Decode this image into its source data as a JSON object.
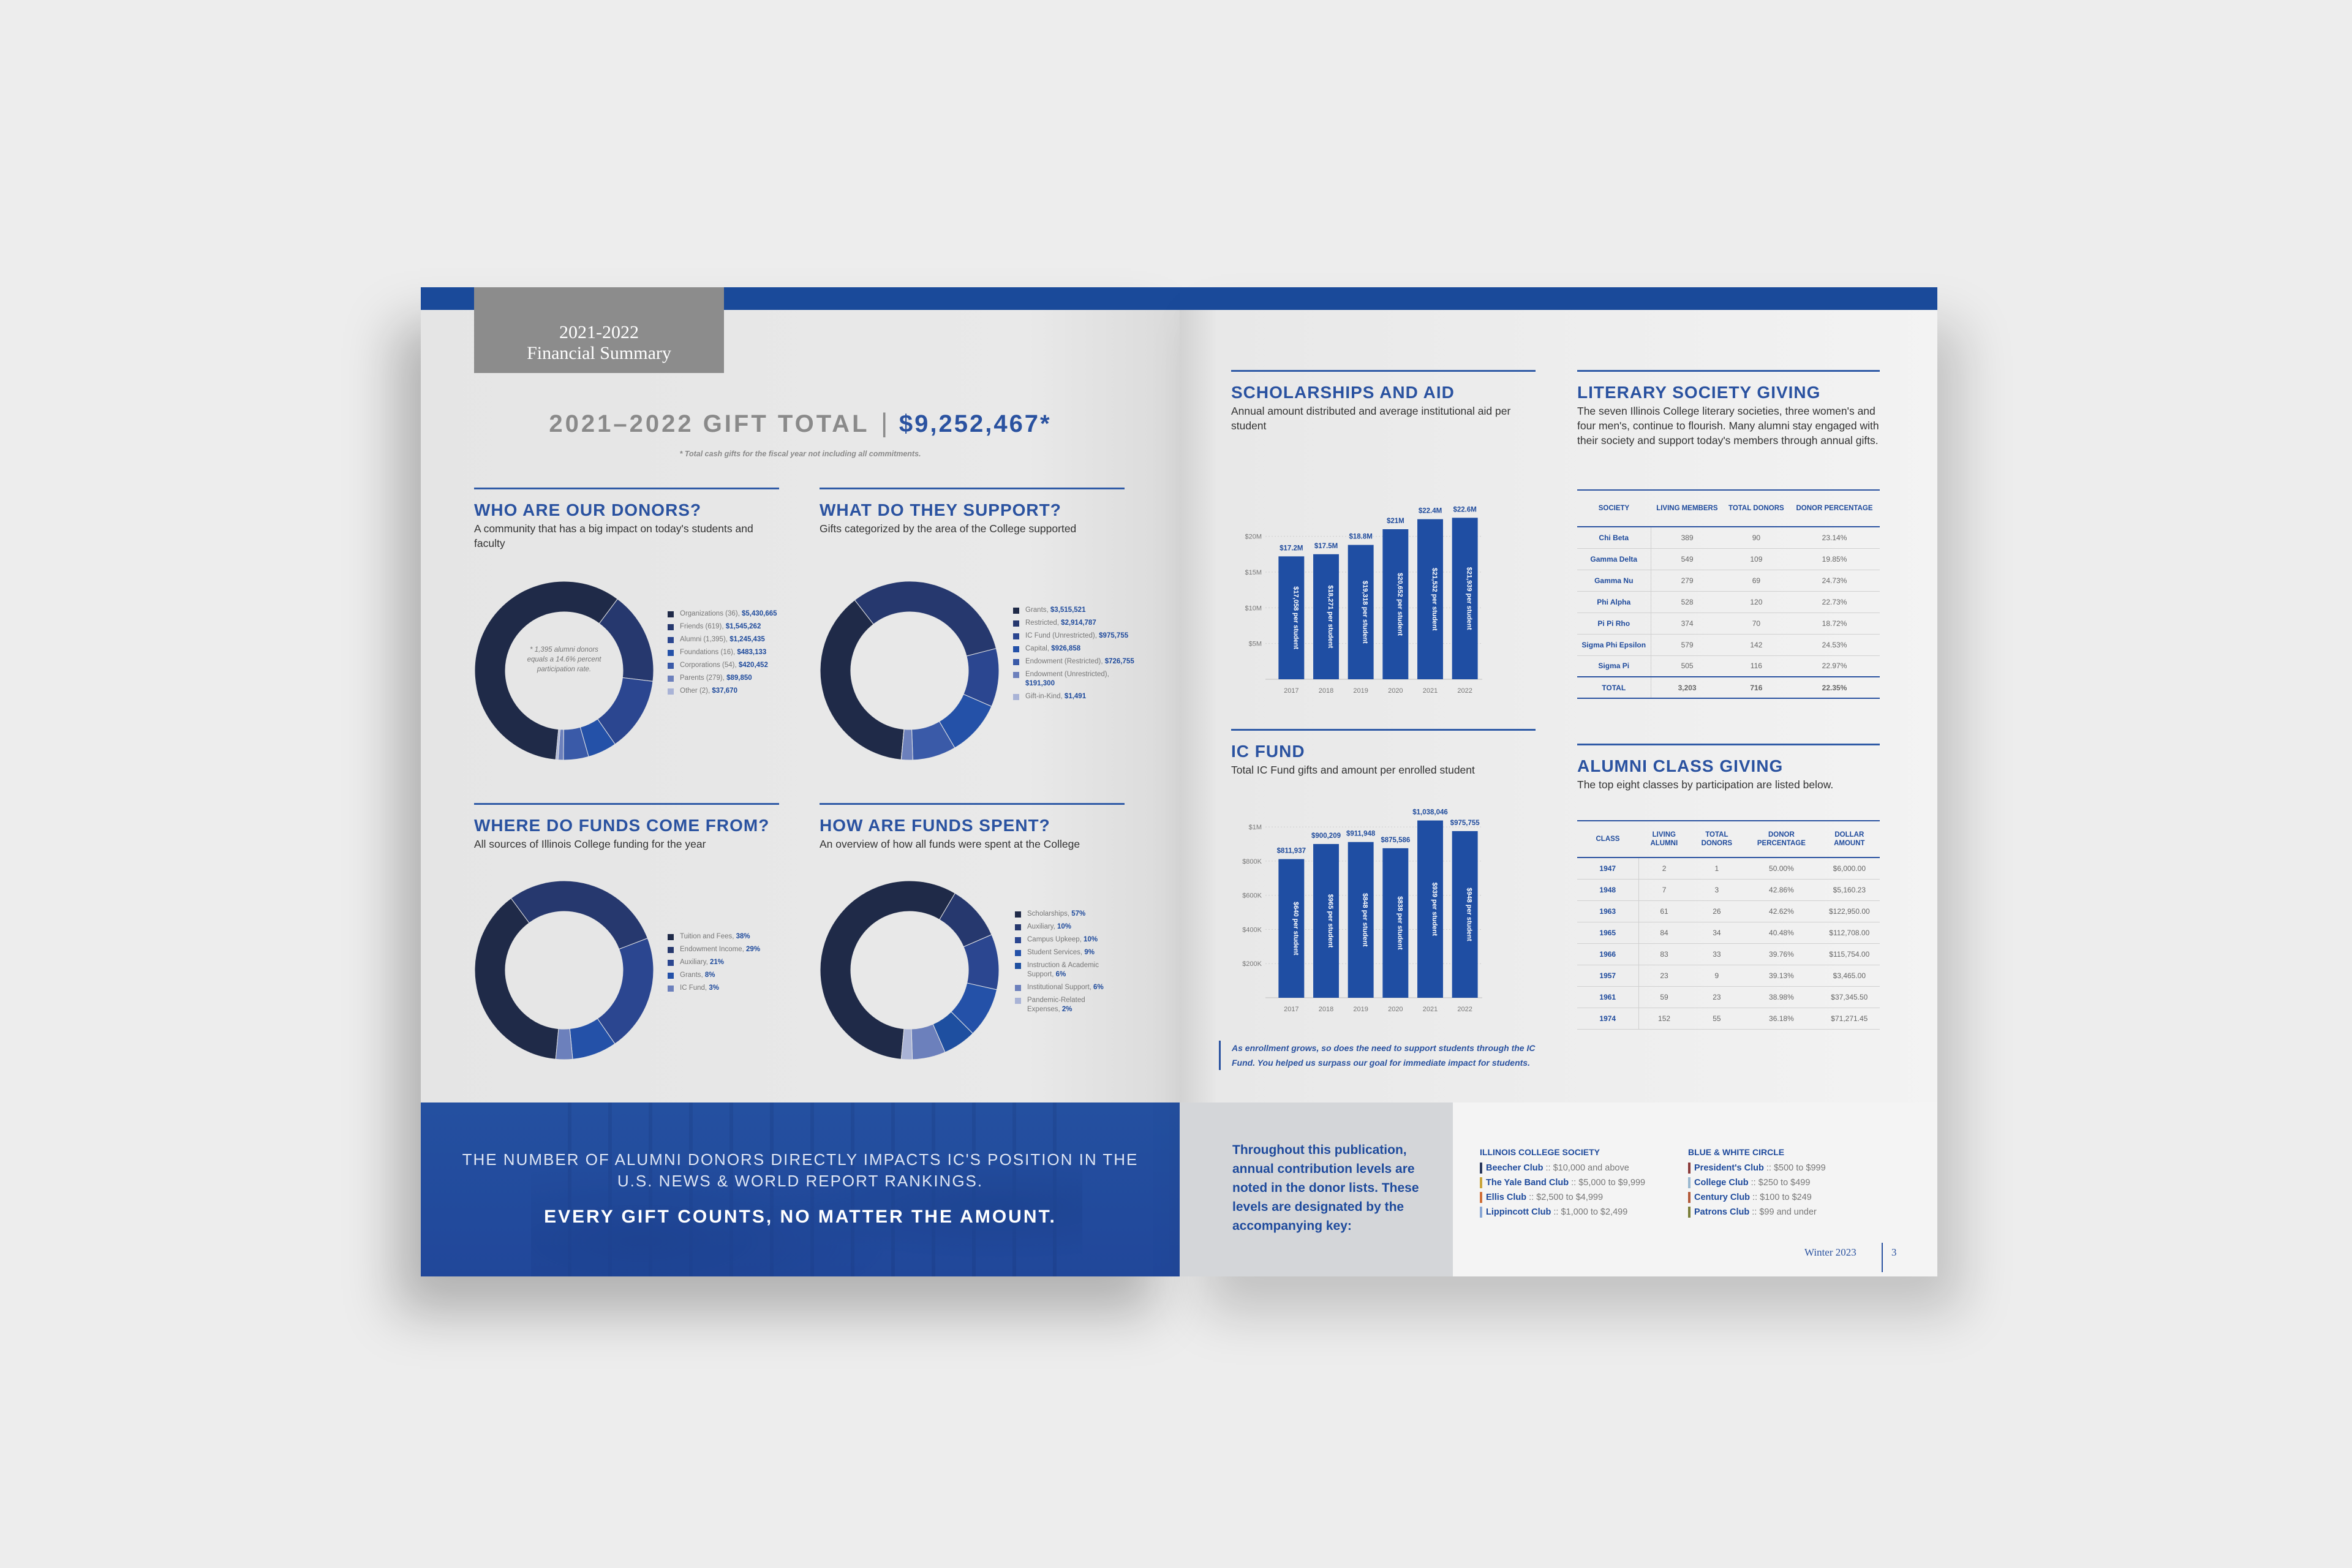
{
  "left_page": {
    "header_badge": {
      "line1": "2021-2022",
      "line2": "Financial Summary"
    },
    "gift_total": {
      "label": "2021–2022 GIFT TOTAL",
      "separator": "|",
      "amount": "$9,252,467*",
      "footnote": "* Total cash gifts for the fiscal year not including all commitments."
    },
    "donors": {
      "title": "WHO ARE OUR DONORS?",
      "subtitle": "A community that has a big impact on today's students and faculty",
      "center_note": "* 1,395 alumni donors equals a 14.6% percent participation rate.",
      "legend": [
        {
          "label": "Organizations (36),",
          "value": "$5,430,665"
        },
        {
          "label": "Friends (619),",
          "value": "$1,545,262"
        },
        {
          "label": "Alumni (1,395),",
          "value": "$1,245,435"
        },
        {
          "label": "Foundations (16),",
          "value": "$483,133"
        },
        {
          "label": "Corporations (54),",
          "value": "$420,452"
        },
        {
          "label": "Parents (279),",
          "value": "$89,850"
        },
        {
          "label": "Other (2),",
          "value": "$37,670"
        }
      ]
    },
    "support": {
      "title": "WHAT DO THEY SUPPORT?",
      "subtitle": "Gifts categorized by the area of the College supported",
      "legend": [
        {
          "label": "Grants,",
          "value": "$3,515,521"
        },
        {
          "label": "Restricted,",
          "value": "$2,914,787"
        },
        {
          "label": "IC Fund (Unrestricted),",
          "value": "$975,755"
        },
        {
          "label": "Capital,",
          "value": "$926,858"
        },
        {
          "label": "Endowment (Restricted),",
          "value": "$726,755"
        },
        {
          "label": "Endowment (Unrestricted),",
          "value": "$191,300"
        },
        {
          "label": "Gift-in-Kind,",
          "value": "$1,491"
        }
      ]
    },
    "sources": {
      "title": "WHERE DO FUNDS COME FROM?",
      "subtitle": "All sources of Illinois College funding for the year",
      "legend": [
        {
          "label": "Tuition and Fees,",
          "value": "38%"
        },
        {
          "label": "Endowment Income,",
          "value": "29%"
        },
        {
          "label": "Auxiliary,",
          "value": "21%"
        },
        {
          "label": "Grants,",
          "value": "8%"
        },
        {
          "label": "IC Fund,",
          "value": "3%"
        }
      ]
    },
    "spent": {
      "title": "HOW ARE FUNDS SPENT?",
      "subtitle": "An overview of how all funds were spent at the College",
      "legend": [
        {
          "label": "Scholarships,",
          "value": "57%"
        },
        {
          "label": "Auxiliary,",
          "value": "10%"
        },
        {
          "label": "Campus Upkeep,",
          "value": "10%"
        },
        {
          "label": "Student Services,",
          "value": "9%"
        },
        {
          "label": "Instruction & Academic Support,",
          "value": "6%"
        },
        {
          "label": "Institutional Support,",
          "value": "6%"
        },
        {
          "label": "Pandemic-Related Expenses,",
          "value": "2%"
        }
      ]
    },
    "banner": {
      "line1": "THE NUMBER OF ALUMNI DONORS DIRECTLY IMPACTS IC'S POSITION IN THE",
      "line2": "U.S. NEWS & WORLD REPORT RANKINGS.",
      "line3": "EVERY GIFT COUNTS, NO MATTER THE AMOUNT."
    }
  },
  "right_page": {
    "scholarships": {
      "title": "SCHOLARSHIPS AND AID",
      "subtitle": "Annual amount distributed and average institutional aid per student"
    },
    "icfund": {
      "title": "IC FUND",
      "subtitle": "Total IC Fund gifts and amount per enrolled student",
      "note": "As enrollment grows, so does the need to support students through the IC Fund. You helped us surpass our goal for immediate impact for students."
    },
    "literary": {
      "title": "LITERARY SOCIETY GIVING",
      "subtitle": "The seven Illinois College literary societies, three women's and four men's, continue to flourish. Many alumni stay engaged with their society and support today's members through annual gifts.",
      "headers": [
        "SOCIETY",
        "LIVING MEMBERS",
        "TOTAL DONORS",
        "DONOR PERCENTAGE"
      ],
      "rows": [
        [
          "Chi Beta",
          "389",
          "90",
          "23.14%"
        ],
        [
          "Gamma Delta",
          "549",
          "109",
          "19.85%"
        ],
        [
          "Gamma Nu",
          "279",
          "69",
          "24.73%"
        ],
        [
          "Phi Alpha",
          "528",
          "120",
          "22.73%"
        ],
        [
          "Pi Pi Rho",
          "374",
          "70",
          "18.72%"
        ],
        [
          "Sigma Phi Epsilon",
          "579",
          "142",
          "24.53%"
        ],
        [
          "Sigma Pi",
          "505",
          "116",
          "22.97%"
        ]
      ],
      "total": [
        "TOTAL",
        "3,203",
        "716",
        "22.35%"
      ]
    },
    "alumni": {
      "title": "ALUMNI CLASS GIVING",
      "subtitle": "The top eight classes by participation are listed below.",
      "headers": [
        "CLASS",
        "LIVING ALUMNI",
        "TOTAL DONORS",
        "DONOR PERCENTAGE",
        "DOLLAR AMOUNT"
      ],
      "rows": [
        [
          "1947",
          "2",
          "1",
          "50.00%",
          "$6,000.00"
        ],
        [
          "1948",
          "7",
          "3",
          "42.86%",
          "$5,160.23"
        ],
        [
          "1963",
          "61",
          "26",
          "42.62%",
          "$122,950.00"
        ],
        [
          "1965",
          "84",
          "34",
          "40.48%",
          "$112,708.00"
        ],
        [
          "1966",
          "83",
          "33",
          "39.76%",
          "$115,754.00"
        ],
        [
          "1957",
          "23",
          "9",
          "39.13%",
          "$3,465.00"
        ],
        [
          "1961",
          "59",
          "23",
          "38.98%",
          "$37,345.50"
        ],
        [
          "1974",
          "152",
          "55",
          "36.18%",
          "$71,271.45"
        ]
      ]
    },
    "key": {
      "intro": "Throughout this publication, annual contribution levels are noted in the donor lists. These levels are designated by the accompanying key:",
      "society_title": "ILLINOIS COLLEGE SOCIETY",
      "society": [
        {
          "name": "Beecher Club",
          "sep": "::",
          "range": "$10,000 and above",
          "color": "#2b3a5e"
        },
        {
          "name": "The Yale Band Club",
          "sep": "::",
          "range": "$5,000 to $9,999",
          "color": "#c9a53c"
        },
        {
          "name": "Ellis Club",
          "sep": "::",
          "range": "$2,500 to $4,999",
          "color": "#d0703a"
        },
        {
          "name": "Lippincott Club",
          "sep": "::",
          "range": "$1,000 to $2,499",
          "color": "#8aa7d4"
        }
      ],
      "circle_title": "BLUE & WHITE CIRCLE",
      "circle": [
        {
          "name": "President's Club",
          "sep": "::",
          "range": "$500 to $999",
          "color": "#8a3a3a"
        },
        {
          "name": "College Club",
          "sep": "::",
          "range": "$250 to $499",
          "color": "#9ab8cf"
        },
        {
          "name": "Century Club",
          "sep": "::",
          "range": "$100 to $249",
          "color": "#b35a3a"
        },
        {
          "name": "Patrons Club",
          "sep": "::",
          "range": "$99 and under",
          "color": "#7a7f3a"
        }
      ]
    },
    "footer": {
      "issue": "Winter 2023",
      "page": "3"
    }
  },
  "chart_data": [
    {
      "type": "pie",
      "title": "WHO ARE OUR DONORS?",
      "categories": [
        "Organizations",
        "Friends",
        "Alumni",
        "Foundations",
        "Corporations",
        "Parents",
        "Other"
      ],
      "values": [
        5430665,
        1545262,
        1245435,
        483133,
        420452,
        89850,
        37670
      ],
      "colors": [
        "#1f2a48",
        "#26386e",
        "#2b4690",
        "#2451a8",
        "#3a5aa8",
        "#6c80bc",
        "#a9b3d6"
      ]
    },
    {
      "type": "pie",
      "title": "WHAT DO THEY SUPPORT?",
      "categories": [
        "Grants",
        "Restricted",
        "IC Fund (Unrestricted)",
        "Capital",
        "Endowment (Restricted)",
        "Endowment (Unrestricted)",
        "Gift-in-Kind"
      ],
      "values": [
        3515521,
        2914787,
        975755,
        926858,
        726755,
        191300,
        1491
      ],
      "colors": [
        "#1f2a48",
        "#26386e",
        "#2b4690",
        "#2451a8",
        "#3a5aa8",
        "#6c80bc",
        "#a9b3d6"
      ]
    },
    {
      "type": "pie",
      "title": "WHERE DO FUNDS COME FROM?",
      "categories": [
        "Tuition and Fees",
        "Endowment Income",
        "Auxiliary",
        "Grants",
        "IC Fund"
      ],
      "values": [
        38,
        29,
        21,
        8,
        3
      ],
      "colors": [
        "#1f2a48",
        "#26386e",
        "#2b4690",
        "#2451a8",
        "#6c80bc"
      ]
    },
    {
      "type": "pie",
      "title": "HOW ARE FUNDS SPENT?",
      "categories": [
        "Scholarships",
        "Auxiliary",
        "Campus Upkeep",
        "Student Services",
        "Instruction & Academic Support",
        "Institutional Support",
        "Pandemic-Related Expenses"
      ],
      "values": [
        57,
        10,
        10,
        9,
        6,
        6,
        2
      ],
      "colors": [
        "#1f2a48",
        "#26386e",
        "#2b4690",
        "#2451a8",
        "#1e4fa0",
        "#6c80bc",
        "#a9b3d6"
      ]
    },
    {
      "type": "bar",
      "title": "SCHOLARSHIPS AND AID",
      "categories": [
        "2017",
        "2018",
        "2019",
        "2020",
        "2021",
        "2022"
      ],
      "values": [
        17.2,
        17.5,
        18.8,
        21,
        22.4,
        22.6
      ],
      "value_labels": [
        "$17.2M",
        "$17.5M",
        "$18.8M",
        "$21M",
        "$22.4M",
        "$22.6M"
      ],
      "bar_labels": [
        "$17,058 per student",
        "$18,271 per student",
        "$19,318 per student",
        "$20,652 per student",
        "$21,532 per student",
        "$21,939 per student"
      ],
      "yticks": [
        "$20M",
        "$15M",
        "$10M",
        "$5M"
      ],
      "ytick_values": [
        20,
        15,
        10,
        5
      ],
      "ylim": [
        0,
        24
      ]
    },
    {
      "type": "bar",
      "title": "IC FUND",
      "categories": [
        "2017",
        "2018",
        "2019",
        "2020",
        "2021",
        "2022"
      ],
      "values": [
        811937,
        900209,
        911948,
        875586,
        1038046,
        975755
      ],
      "value_labels": [
        "$811,937",
        "$900,209",
        "$911,948",
        "$875,586",
        "$1,038,046",
        "$975,755"
      ],
      "bar_labels": [
        "$640 per student",
        "$965 per student",
        "$848 per student",
        "$838 per student",
        "$939 per student",
        "$948 per student"
      ],
      "yticks": [
        "$1M",
        "$800K",
        "$600K",
        "$400K",
        "$200K"
      ],
      "ytick_values": [
        1000000,
        800000,
        600000,
        400000,
        200000
      ],
      "ylim": [
        0,
        1040000
      ]
    }
  ]
}
